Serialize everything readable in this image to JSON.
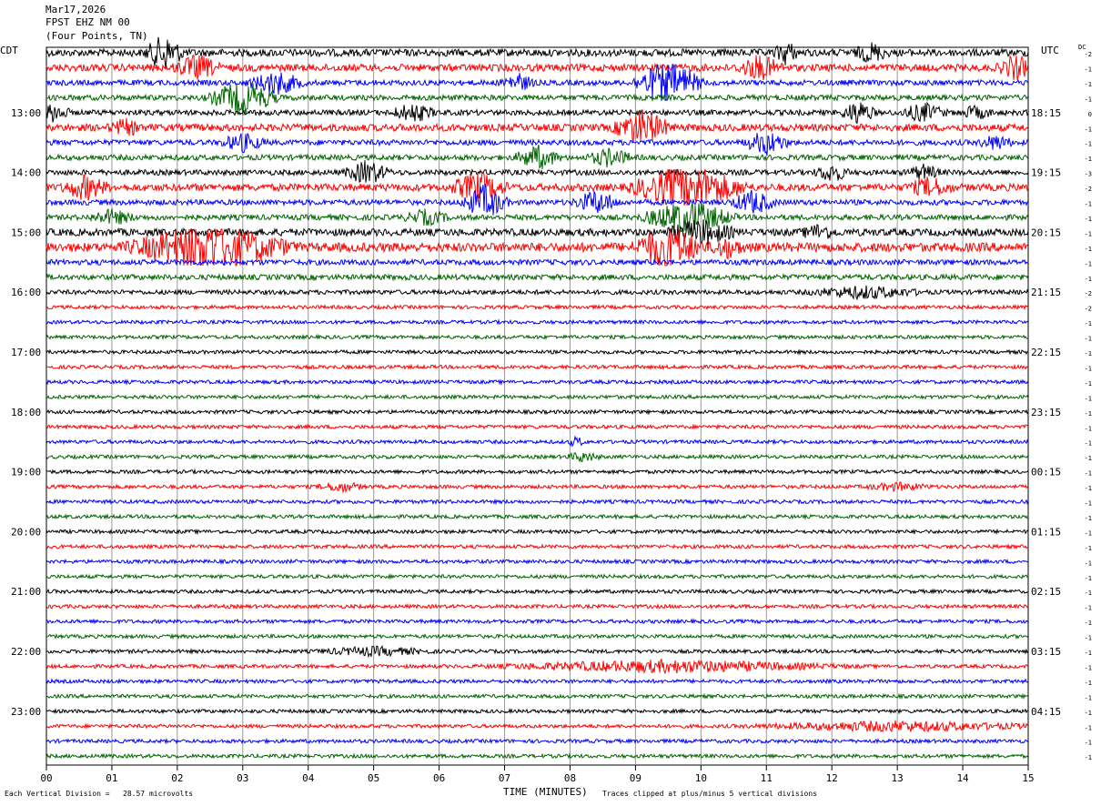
{
  "header": {
    "date": "Mar17,2026",
    "station": "FPST EHZ NM 00",
    "location": "(Four Points, TN)"
  },
  "labels": {
    "left_tz": "CDT",
    "right_tz": "UTC",
    "dc": "DC"
  },
  "footer": {
    "division_note": "Each Vertical Division =   28.57 microvolts",
    "xlabel": "TIME (MINUTES)",
    "clip_note": "Traces clipped at plus/minus 5 vertical divisions"
  },
  "chart_data": {
    "type": "line",
    "title": "",
    "xlabel": "TIME (MINUTES)",
    "xlim": [
      0,
      15
    ],
    "x_ticks": [
      "00",
      "01",
      "02",
      "03",
      "04",
      "05",
      "06",
      "07",
      "08",
      "09",
      "10",
      "11",
      "12",
      "13",
      "14",
      "15"
    ],
    "trace_count": 48,
    "trace_minutes": 15,
    "color_cycle": [
      "#000000",
      "#ff0000",
      "#0000ff",
      "#006400"
    ],
    "left_hour_labels": [
      "13:00",
      "14:00",
      "15:00",
      "16:00",
      "17:00",
      "18:00",
      "19:00",
      "20:00",
      "21:00",
      "22:00",
      "23:00"
    ],
    "right_hour_labels": [
      "18:15",
      "19:15",
      "20:15",
      "21:15",
      "22:15",
      "23:15",
      "00:15",
      "01:15",
      "02:15",
      "03:15",
      "04:15"
    ],
    "hour_label_first_trace": 4,
    "hour_label_every": 4,
    "dc_offsets": [
      "-2",
      "-1",
      "-1",
      "-1",
      "0",
      "-1",
      "-1",
      "-1",
      "-3",
      "-2",
      "-1",
      "-1",
      "-1",
      "-1",
      "-1",
      "-1",
      "-2",
      "-2",
      "-1",
      "-1",
      "-1",
      "-1",
      "-1",
      "-1",
      "-1",
      "-1",
      "-1",
      "-1",
      "-1",
      "-1",
      "-1",
      "-1",
      "-1",
      "-1",
      "-1",
      "-1",
      "-1",
      "-1",
      "-1",
      "-1",
      "-1",
      "-1",
      "-1",
      "-1",
      "-1",
      "-1",
      "-1",
      "-1"
    ],
    "noise_levels": [
      4,
      4,
      3,
      3,
      3,
      4,
      3,
      3,
      3,
      4,
      3,
      3,
      4,
      5,
      3,
      3,
      2.5,
      2,
      2,
      2,
      2,
      2,
      2,
      2,
      2,
      2,
      2,
      2,
      2,
      2,
      2,
      2,
      2,
      2,
      2,
      2,
      2,
      2,
      2,
      2,
      2,
      2,
      2,
      2,
      2,
      2,
      2,
      2
    ],
    "events": [
      {
        "trace": 0,
        "minute": 1.8,
        "amp": 3,
        "dur": 0.35
      },
      {
        "trace": 0,
        "minute": 12.6,
        "amp": 1.5,
        "dur": 0.3
      },
      {
        "trace": 0,
        "minute": 11.3,
        "amp": 2,
        "dur": 0.2
      },
      {
        "trace": 1,
        "minute": 2.3,
        "amp": 2,
        "dur": 0.4
      },
      {
        "trace": 1,
        "minute": 10.9,
        "amp": 2,
        "dur": 0.4
      },
      {
        "trace": 1,
        "minute": 14.8,
        "amp": 2,
        "dur": 0.3
      },
      {
        "trace": 2,
        "minute": 3.5,
        "amp": 2,
        "dur": 0.5
      },
      {
        "trace": 2,
        "minute": 7.2,
        "amp": 1.5,
        "dur": 0.3
      },
      {
        "trace": 2,
        "minute": 9.5,
        "amp": 4,
        "dur": 0.6
      },
      {
        "trace": 3,
        "minute": 3.0,
        "amp": 3,
        "dur": 0.6
      },
      {
        "trace": 4,
        "minute": 0.1,
        "amp": 1.5,
        "dur": 0.3
      },
      {
        "trace": 4,
        "minute": 5.6,
        "amp": 1.5,
        "dur": 0.4
      },
      {
        "trace": 4,
        "minute": 12.4,
        "amp": 2,
        "dur": 0.3
      },
      {
        "trace": 4,
        "minute": 13.4,
        "amp": 1.5,
        "dur": 0.4
      },
      {
        "trace": 4,
        "minute": 14.2,
        "amp": 1,
        "dur": 0.3
      },
      {
        "trace": 5,
        "minute": 1.2,
        "amp": 1.2,
        "dur": 0.3
      },
      {
        "trace": 5,
        "minute": 9.1,
        "amp": 3,
        "dur": 0.5
      },
      {
        "trace": 6,
        "minute": 3.0,
        "amp": 1.5,
        "dur": 0.4
      },
      {
        "trace": 6,
        "minute": 11.0,
        "amp": 2,
        "dur": 0.4
      },
      {
        "trace": 6,
        "minute": 14.5,
        "amp": 1.2,
        "dur": 0.3
      },
      {
        "trace": 7,
        "minute": 7.5,
        "amp": 2,
        "dur": 0.4
      },
      {
        "trace": 7,
        "minute": 8.6,
        "amp": 1.5,
        "dur": 0.4
      },
      {
        "trace": 8,
        "minute": 4.9,
        "amp": 2,
        "dur": 0.4
      },
      {
        "trace": 8,
        "minute": 12.0,
        "amp": 1.5,
        "dur": 0.3
      },
      {
        "trace": 8,
        "minute": 13.4,
        "amp": 1.2,
        "dur": 0.3
      },
      {
        "trace": 9,
        "minute": 0.6,
        "amp": 2,
        "dur": 0.4
      },
      {
        "trace": 9,
        "minute": 6.6,
        "amp": 2.5,
        "dur": 0.5
      },
      {
        "trace": 9,
        "minute": 9.8,
        "amp": 4,
        "dur": 1.0
      },
      {
        "trace": 9,
        "minute": 13.5,
        "amp": 1.5,
        "dur": 0.4
      },
      {
        "trace": 10,
        "minute": 6.7,
        "amp": 3,
        "dur": 0.4
      },
      {
        "trace": 10,
        "minute": 8.4,
        "amp": 2,
        "dur": 0.4
      },
      {
        "trace": 10,
        "minute": 10.8,
        "amp": 2,
        "dur": 0.4
      },
      {
        "trace": 11,
        "minute": 1.0,
        "amp": 1.2,
        "dur": 0.4
      },
      {
        "trace": 11,
        "minute": 5.8,
        "amp": 1.2,
        "dur": 0.4
      },
      {
        "trace": 11,
        "minute": 9.8,
        "amp": 3,
        "dur": 0.8
      },
      {
        "trace": 12,
        "minute": 10.0,
        "amp": 2,
        "dur": 0.6
      },
      {
        "trace": 12,
        "minute": 11.8,
        "amp": 1.2,
        "dur": 0.3
      },
      {
        "trace": 13,
        "minute": 2.5,
        "amp": 4,
        "dur": 1.4
      },
      {
        "trace": 13,
        "minute": 9.5,
        "amp": 4,
        "dur": 0.6
      },
      {
        "trace": 13,
        "minute": 10.4,
        "amp": 1.5,
        "dur": 0.3
      },
      {
        "trace": 16,
        "minute": 12.5,
        "amp": 1,
        "dur": 1.0
      },
      {
        "trace": 26,
        "minute": 8.1,
        "amp": 0.8,
        "dur": 0.15
      },
      {
        "trace": 27,
        "minute": 8.2,
        "amp": 0.8,
        "dur": 0.3
      },
      {
        "trace": 29,
        "minute": 4.5,
        "amp": 0.8,
        "dur": 0.4
      },
      {
        "trace": 29,
        "minute": 13.0,
        "amp": 0.6,
        "dur": 0.6
      },
      {
        "trace": 40,
        "minute": 5.0,
        "amp": 0.7,
        "dur": 1.0
      },
      {
        "trace": 41,
        "minute": 9.5,
        "amp": 1.0,
        "dur": 3.0
      },
      {
        "trace": 45,
        "minute": 13.0,
        "amp": 0.8,
        "dur": 2.5
      }
    ]
  }
}
